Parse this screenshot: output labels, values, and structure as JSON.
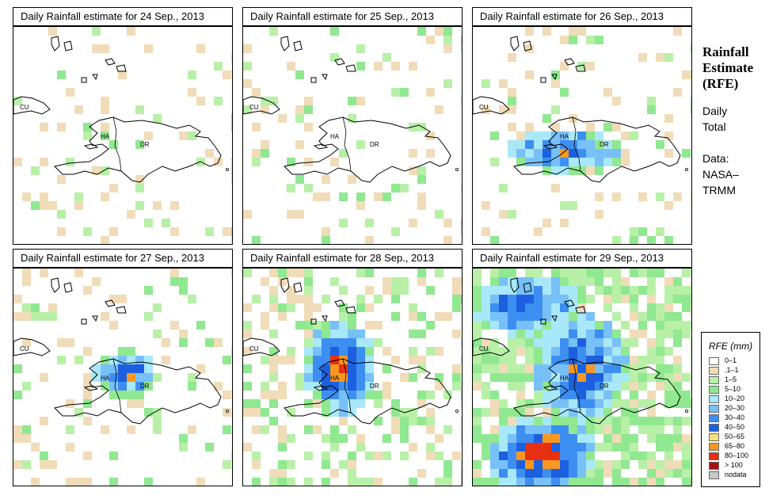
{
  "panels": [
    {
      "title": "Daily Rainfall estimate for  24 Sep., 2013",
      "day": 24
    },
    {
      "title": "Daily Rainfall estimate for  25 Sep., 2013",
      "day": 25
    },
    {
      "title": "Daily Rainfall estimate for  26 Sep., 2013",
      "day": 26
    },
    {
      "title": "Daily Rainfall estimate for  27 Sep., 2013",
      "day": 27
    },
    {
      "title": "Daily Rainfall estimate for  28 Sep., 2013",
      "day": 28
    },
    {
      "title": "Daily Rainfall estimate for  29 Sep., 2013",
      "day": 29
    }
  ],
  "map_labels": {
    "cuba": "CU",
    "haiti": "HA",
    "dominican_republic": "DR"
  },
  "side": {
    "heading_line1": "Rainfall",
    "heading_line2": "Estimate",
    "heading_line3": "(RFE)",
    "period_line1": "Daily",
    "period_line2": "Total",
    "data_line1": "Data:",
    "data_line2": "NASA–",
    "data_line3": "TRMM"
  },
  "legend": {
    "title": "RFE (mm)",
    "classes": [
      {
        "label": "0–1",
        "color": "#ffffff"
      },
      {
        "label": ".1–1",
        "color": "#f0dcb8"
      },
      {
        "label": "1–5",
        "color": "#b8f0a8"
      },
      {
        "label": "5–10",
        "color": "#90e890"
      },
      {
        "label": "10–20",
        "color": "#a8e8f8"
      },
      {
        "label": "20–30",
        "color": "#78c0f8"
      },
      {
        "label": "30–40",
        "color": "#3c8ff0"
      },
      {
        "label": "40–50",
        "color": "#1c60e0"
      },
      {
        "label": "50–65",
        "color": "#f8e078"
      },
      {
        "label": "65–80",
        "color": "#f89820"
      },
      {
        "label": "80–100",
        "color": "#e83010"
      },
      {
        "label": "> 100",
        "color": "#a81010"
      },
      {
        "label": "nodata",
        "color": "#c8c8c8"
      }
    ]
  }
}
